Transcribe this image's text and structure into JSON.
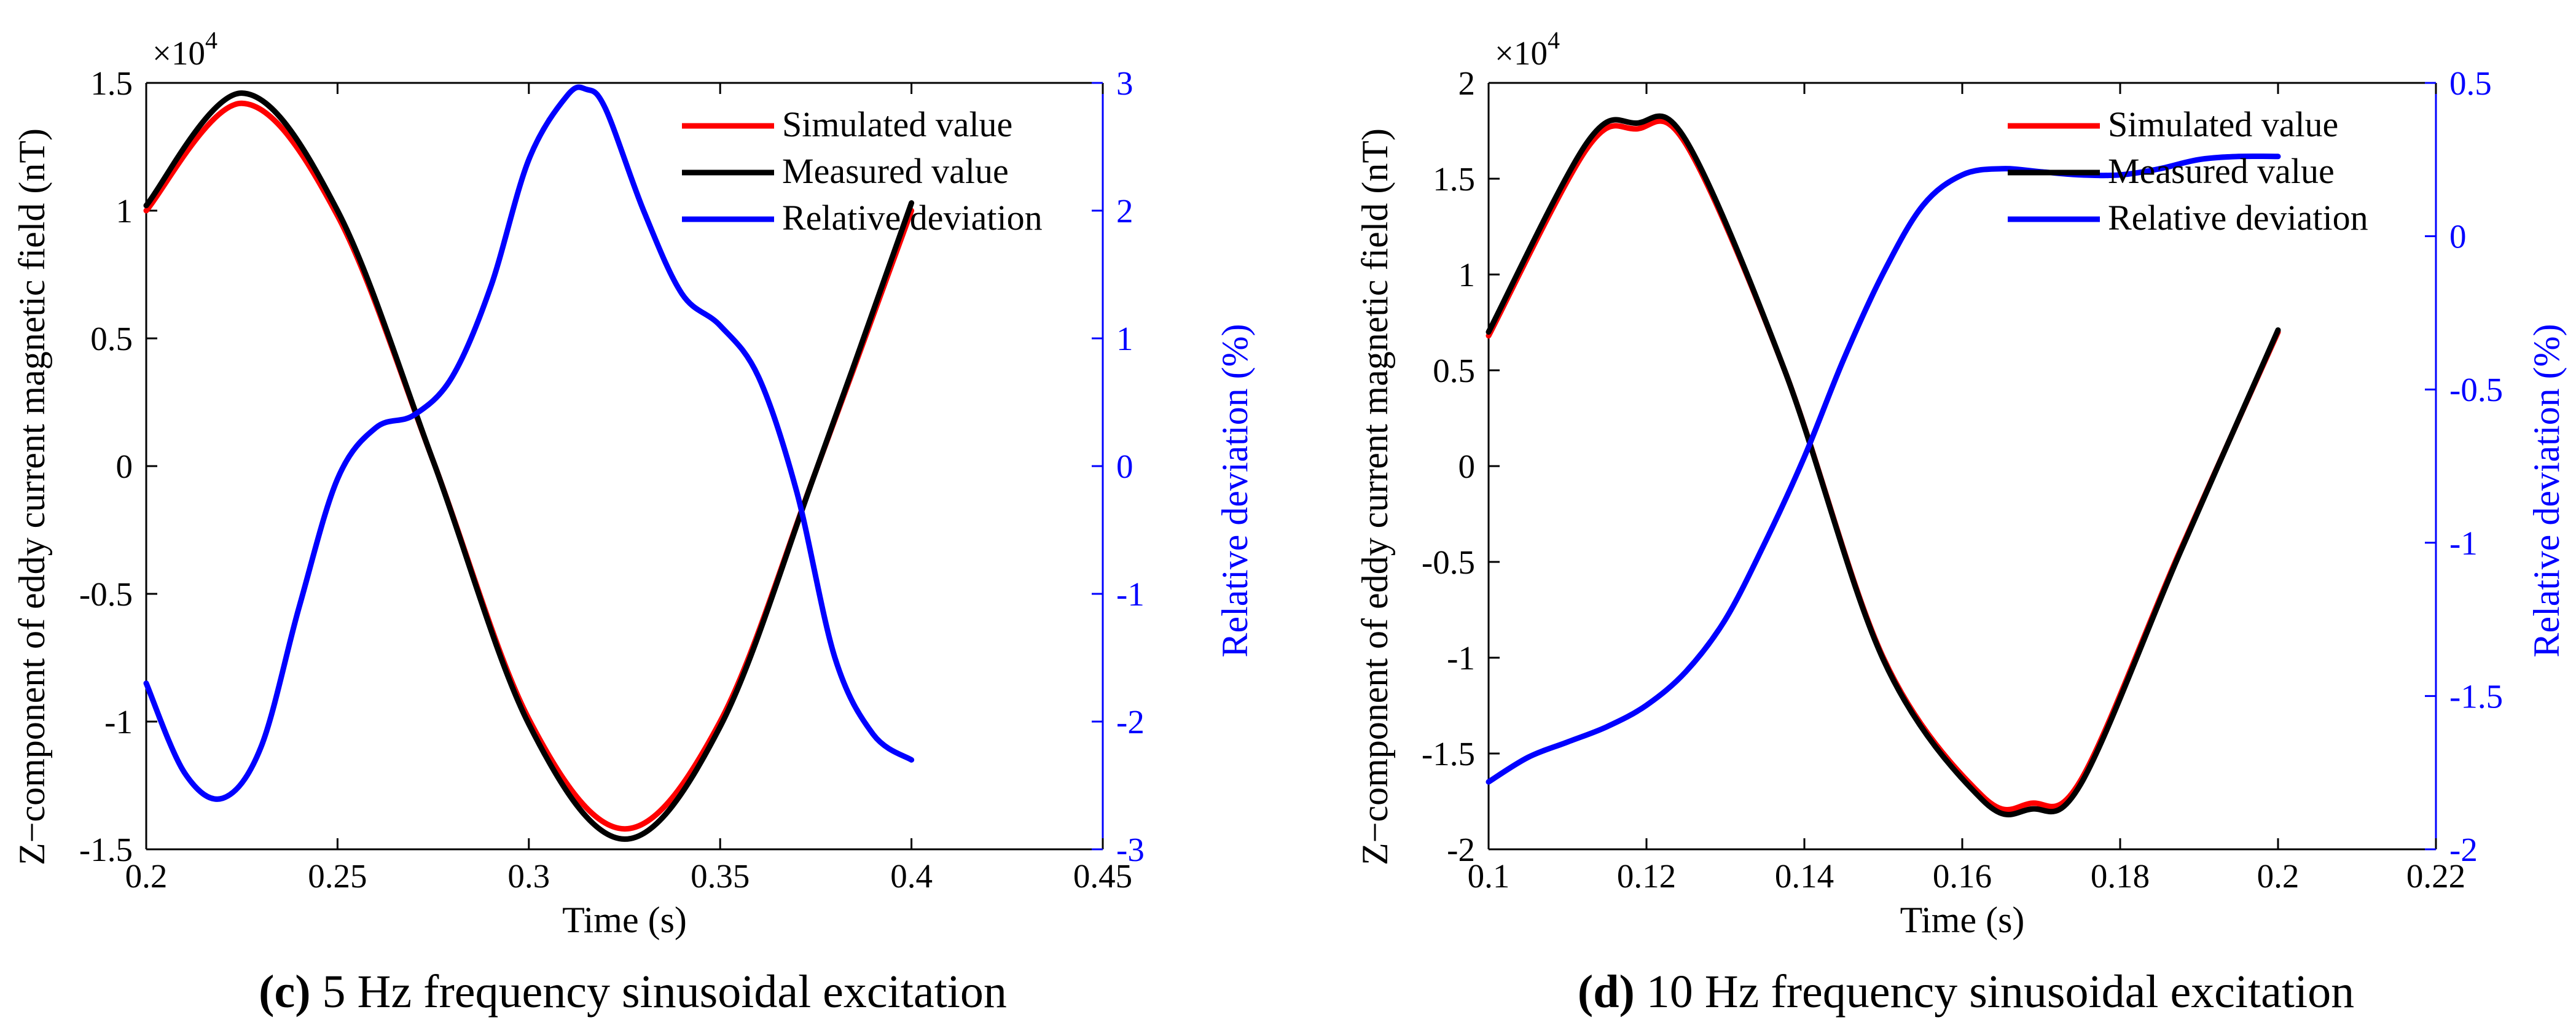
{
  "chart_data": [
    {
      "type": "line",
      "x_label": "Time (s)",
      "y_label_left": "Z−component of eddy current magnetic field (nT)",
      "y_label_right": "Relative deviation (%)",
      "caption_letter": "(c)",
      "caption_text": " 5 Hz frequency sinusoidal excitation",
      "exponent_base": "×10",
      "exponent_power": "4",
      "x_range": [
        0.2,
        0.45
      ],
      "x_ticks": [
        "0.2",
        "0.25",
        "0.3",
        "0.35",
        "0.4",
        "0.45"
      ],
      "y_left_range": [
        -1.5,
        1.5
      ],
      "y_left_ticks": [
        "-1.5",
        "-1",
        "-0.5",
        "0",
        "0.5",
        "1",
        "1.5"
      ],
      "y_right_range": [
        -3,
        3
      ],
      "y_right_ticks": [
        "-3",
        "-2",
        "-1",
        "0",
        "1",
        "2",
        "3"
      ],
      "legend": [
        "Simulated value",
        "Measured value",
        "Relative deviation"
      ],
      "colors": {
        "simulated": "#ff0000",
        "measured": "#000000",
        "deviation": "#0000ff"
      },
      "series": [
        {
          "name": "Simulated value",
          "axis": "left",
          "x": [
            0.2,
            0.225,
            0.25,
            0.275,
            0.3,
            0.325,
            0.35,
            0.375,
            0.4
          ],
          "y": [
            1.0,
            1.42,
            0.98,
            0.02,
            -0.99,
            -1.42,
            -1.0,
            -0.02,
            1.0
          ]
        },
        {
          "name": "Measured value",
          "axis": "left",
          "x": [
            0.2,
            0.225,
            0.25,
            0.275,
            0.3,
            0.325,
            0.35,
            0.375,
            0.4
          ],
          "y": [
            1.02,
            1.46,
            1.0,
            0.02,
            -1.01,
            -1.46,
            -1.02,
            -0.02,
            1.03
          ]
        },
        {
          "name": "Relative deviation",
          "axis": "right",
          "x": [
            0.2,
            0.21,
            0.22,
            0.23,
            0.24,
            0.25,
            0.26,
            0.27,
            0.28,
            0.29,
            0.3,
            0.31,
            0.315,
            0.32,
            0.33,
            0.34,
            0.35,
            0.36,
            0.37,
            0.38,
            0.39,
            0.4
          ],
          "y": [
            -1.7,
            -2.4,
            -2.6,
            -2.2,
            -1.1,
            -0.1,
            0.3,
            0.4,
            0.7,
            1.4,
            2.4,
            2.9,
            2.95,
            2.8,
            2.0,
            1.35,
            1.1,
            0.7,
            -0.2,
            -1.5,
            -2.1,
            -2.3
          ]
        }
      ]
    },
    {
      "type": "line",
      "x_label": "Time (s)",
      "y_label_left": "Z−component of eddy current magnetic field (nT)",
      "y_label_right": "Relative deviation (%)",
      "caption_letter": "(d)",
      "caption_text": " 10 Hz frequency sinusoidal excitation",
      "exponent_base": "×10",
      "exponent_power": "4",
      "x_range": [
        0.1,
        0.22
      ],
      "x_ticks": [
        "0.1",
        "0.12",
        "0.14",
        "0.16",
        "0.18",
        "0.2",
        "0.22"
      ],
      "y_left_range": [
        -2,
        2
      ],
      "y_left_ticks": [
        "-2",
        "-1.5",
        "-1",
        "-0.5",
        "0",
        "0.5",
        "1",
        "1.5",
        "2"
      ],
      "y_right_range": [
        -2,
        0.5
      ],
      "y_right_ticks": [
        "-2",
        "-1.5",
        "-1",
        "-0.5",
        "0",
        "0.5"
      ],
      "legend": [
        "Simulated value",
        "Measured value",
        "Relative deviation"
      ],
      "colors": {
        "simulated": "#ff0000",
        "measured": "#000000",
        "deviation": "#0000ff"
      },
      "series": [
        {
          "name": "Simulated value",
          "axis": "left",
          "x": [
            0.1,
            0.1125,
            0.1187,
            0.125,
            0.1375,
            0.15,
            0.1625,
            0.1687,
            0.175,
            0.1875,
            0.2
          ],
          "y": [
            0.68,
            1.66,
            1.76,
            1.68,
            0.5,
            -1.0,
            -1.72,
            -1.76,
            -1.64,
            -0.45,
            0.7
          ]
        },
        {
          "name": "Measured value",
          "axis": "left",
          "x": [
            0.1,
            0.1125,
            0.1187,
            0.125,
            0.1375,
            0.15,
            0.1625,
            0.1687,
            0.175,
            0.1875,
            0.2
          ],
          "y": [
            0.7,
            1.69,
            1.79,
            1.7,
            0.5,
            -1.01,
            -1.74,
            -1.79,
            -1.66,
            -0.46,
            0.71
          ]
        },
        {
          "name": "Relative deviation",
          "axis": "right",
          "x": [
            0.1,
            0.105,
            0.11,
            0.115,
            0.12,
            0.125,
            0.13,
            0.135,
            0.14,
            0.145,
            0.15,
            0.155,
            0.16,
            0.165,
            0.17,
            0.175,
            0.18,
            0.185,
            0.19,
            0.195,
            0.2
          ],
          "y": [
            -1.78,
            -1.7,
            -1.65,
            -1.6,
            -1.53,
            -1.42,
            -1.25,
            -1.0,
            -0.72,
            -0.4,
            -0.12,
            0.1,
            0.2,
            0.22,
            0.21,
            0.2,
            0.2,
            0.22,
            0.25,
            0.26,
            0.26
          ]
        }
      ]
    }
  ]
}
